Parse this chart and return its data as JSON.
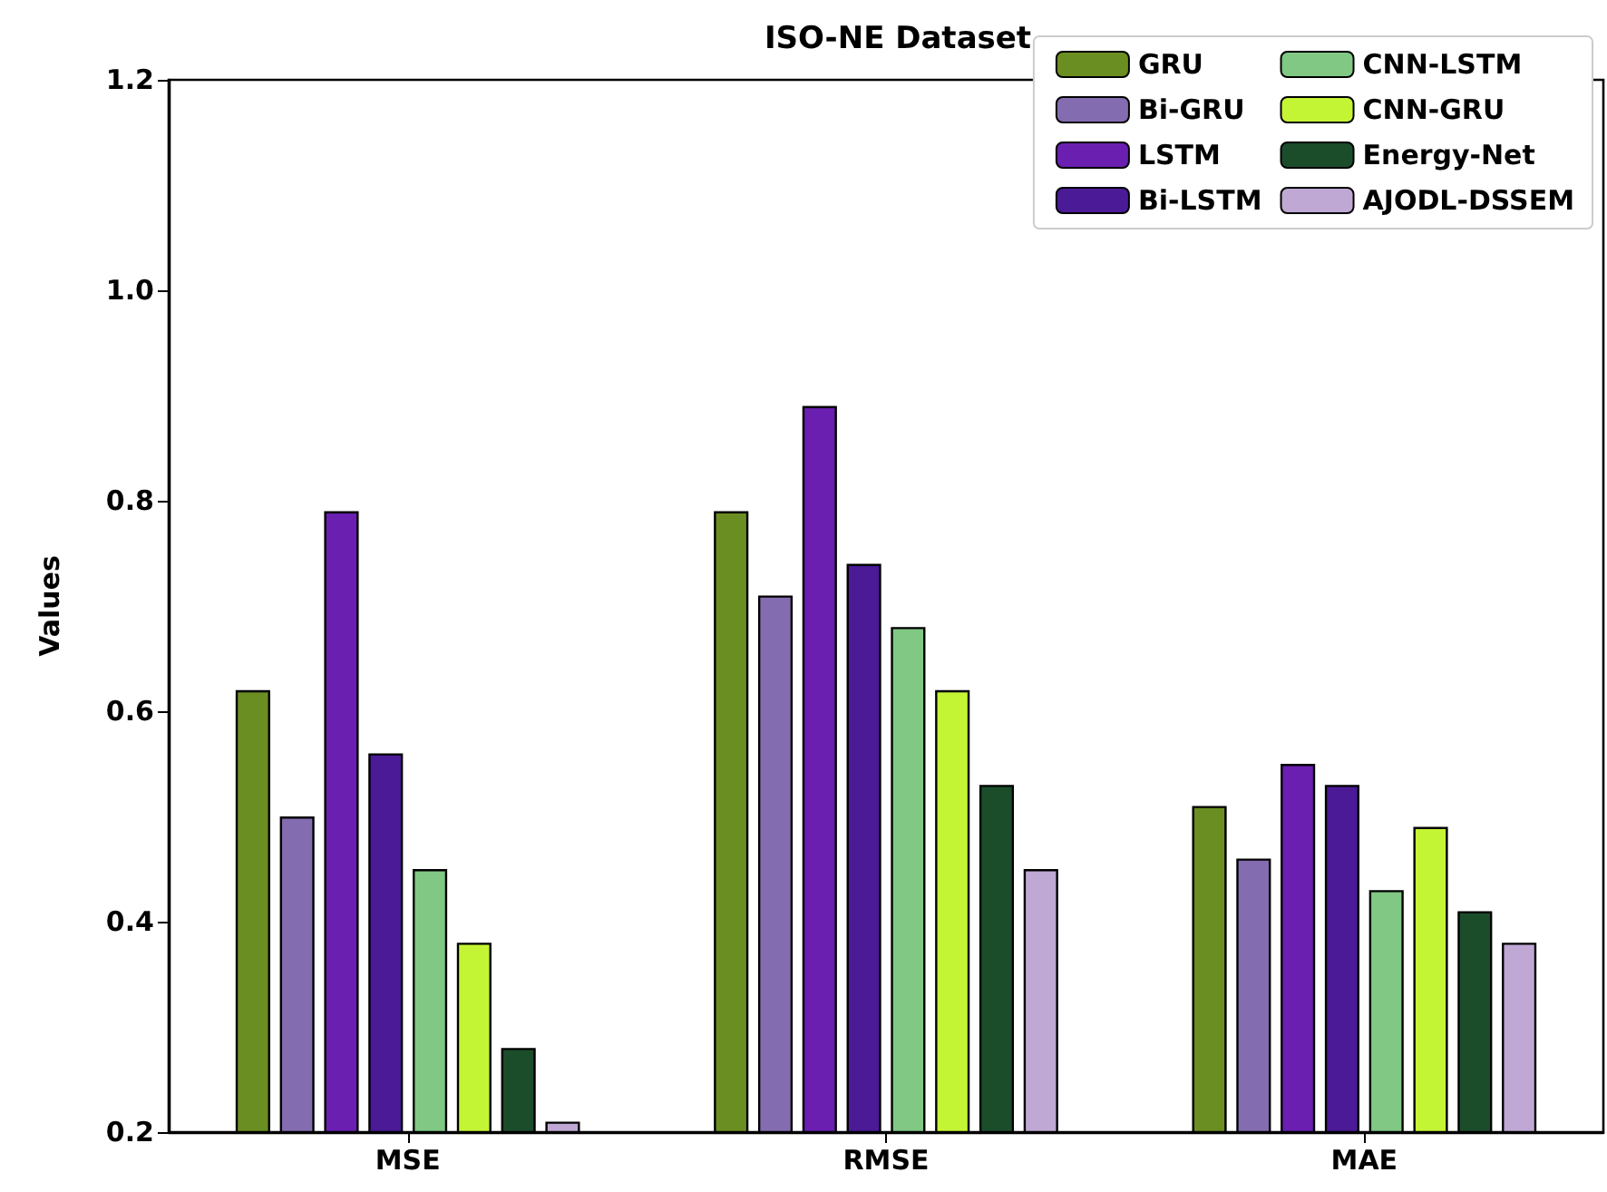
{
  "chart_data": {
    "type": "bar",
    "title": "ISO-NE Dataset",
    "ylabel": "Values",
    "categories": [
      "MSE",
      "RMSE",
      "MAE"
    ],
    "series": [
      {
        "name": "GRU",
        "color": "#6b8e23",
        "values": [
          0.62,
          0.79,
          0.51
        ]
      },
      {
        "name": "Bi-GRU",
        "color": "#846cb0",
        "values": [
          0.5,
          0.71,
          0.46
        ]
      },
      {
        "name": "LSTM",
        "color": "#6a1fb0",
        "values": [
          0.79,
          0.89,
          0.55
        ]
      },
      {
        "name": "Bi-LSTM",
        "color": "#4b1a96",
        "values": [
          0.56,
          0.74,
          0.53
        ]
      },
      {
        "name": "CNN-LSTM",
        "color": "#80c884",
        "values": [
          0.45,
          0.68,
          0.43
        ]
      },
      {
        "name": "CNN-GRU",
        "color": "#c4f534",
        "values": [
          0.38,
          0.62,
          0.49
        ]
      },
      {
        "name": "Energy-Net",
        "color": "#1b4d2b",
        "values": [
          0.28,
          0.53,
          0.41
        ]
      },
      {
        "name": "AJODL-DSSEM",
        "color": "#c0a8d4",
        "values": [
          0.21,
          0.45,
          0.38
        ]
      }
    ],
    "ylim": [
      0.2,
      1.2
    ],
    "yticks": [
      0.2,
      0.4,
      0.6,
      0.8,
      {
        "value": 1.0,
        "label": "1.0"
      },
      1.2
    ],
    "grid": false,
    "legend": "top right"
  }
}
